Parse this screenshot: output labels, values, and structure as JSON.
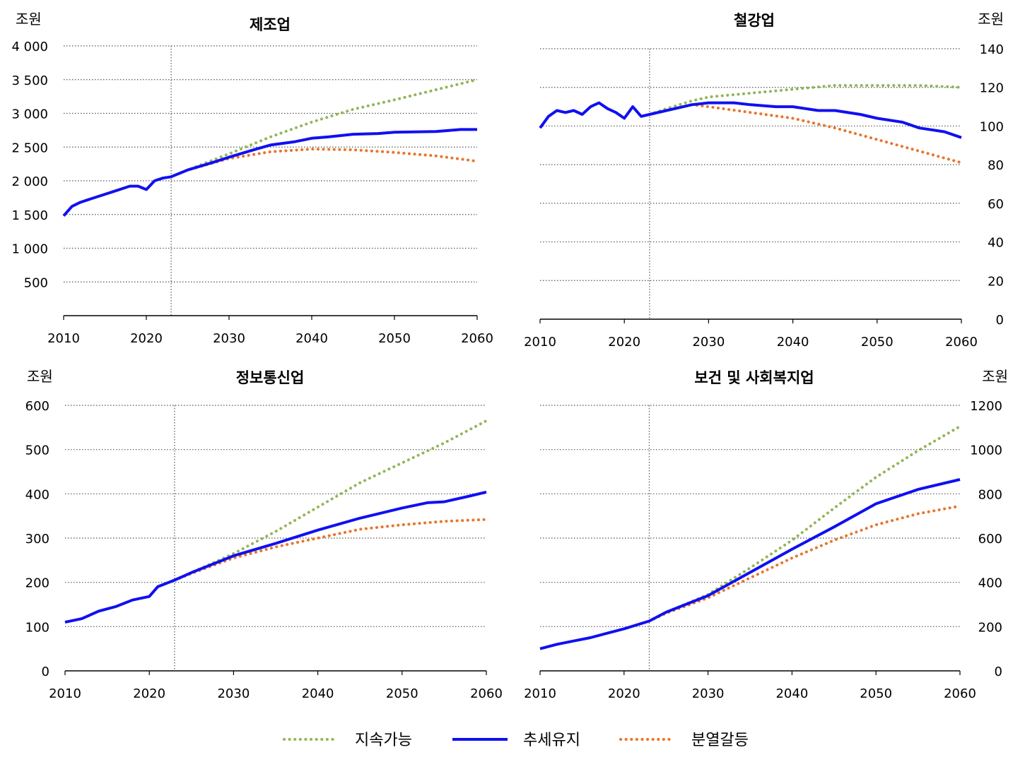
{
  "colors": {
    "sustainable": "#92b558",
    "trend": "#1010f0",
    "fragmented": "#e8742a",
    "grid": "#555555",
    "axis": "#000000"
  },
  "legend": [
    {
      "key": "sustainable",
      "label": "지속가능",
      "style": "dotted"
    },
    {
      "key": "trend",
      "label": "추세유지",
      "style": "solid"
    },
    {
      "key": "fragmented",
      "label": "분열갈등",
      "style": "dotted"
    }
  ],
  "chart_data": [
    {
      "type": "line",
      "title": "제조업",
      "unit": "조원",
      "axis_side": "left",
      "xlim": [
        2010,
        2060
      ],
      "xticks": [
        2010,
        2020,
        2030,
        2040,
        2050,
        2060
      ],
      "ylim": [
        0,
        4000
      ],
      "yticks": [
        500,
        1000,
        1500,
        2000,
        2500,
        3000,
        3500,
        4000
      ],
      "ytick_labels": [
        "500",
        "1 000",
        "1 500",
        "2 000",
        "2 500",
        "3 000",
        "3 500",
        "4 000"
      ],
      "vline": 2023,
      "series": [
        {
          "key": "trend",
          "name": "추세유지",
          "x": [
            2010,
            2011,
            2012,
            2013,
            2014,
            2015,
            2016,
            2017,
            2018,
            2019,
            2020,
            2021,
            2022,
            2023,
            2025,
            2028,
            2030,
            2033,
            2035,
            2038,
            2040,
            2042,
            2045,
            2048,
            2050,
            2055,
            2058,
            2060
          ],
          "y": [
            1480,
            1620,
            1680,
            1720,
            1760,
            1800,
            1840,
            1880,
            1920,
            1920,
            1870,
            2000,
            2040,
            2060,
            2160,
            2270,
            2350,
            2460,
            2530,
            2580,
            2630,
            2650,
            2690,
            2700,
            2720,
            2730,
            2760,
            2760
          ]
        },
        {
          "key": "sustainable",
          "name": "지속가능",
          "x": [
            2023,
            2025,
            2030,
            2035,
            2040,
            2045,
            2050,
            2055,
            2060
          ],
          "y": [
            2060,
            2160,
            2400,
            2650,
            2870,
            3060,
            3200,
            3350,
            3500
          ]
        },
        {
          "key": "fragmented",
          "name": "분열갈등",
          "x": [
            2023,
            2025,
            2030,
            2035,
            2040,
            2045,
            2050,
            2055,
            2060
          ],
          "y": [
            2060,
            2160,
            2330,
            2430,
            2470,
            2460,
            2420,
            2370,
            2290
          ]
        }
      ]
    },
    {
      "type": "line",
      "title": "철강업",
      "unit": "조원",
      "axis_side": "right",
      "xlim": [
        2010,
        2060
      ],
      "xticks": [
        2010,
        2020,
        2030,
        2040,
        2050,
        2060
      ],
      "ylim": [
        0,
        140
      ],
      "yticks": [
        0,
        20,
        40,
        60,
        80,
        100,
        120,
        140
      ],
      "ytick_labels": [
        "0",
        "20",
        "40",
        "60",
        "80",
        "100",
        "120",
        "140"
      ],
      "vline": 2023,
      "series": [
        {
          "key": "trend",
          "name": "추세유지",
          "x": [
            2010,
            2011,
            2012,
            2013,
            2014,
            2015,
            2016,
            2017,
            2018,
            2019,
            2020,
            2021,
            2022,
            2023,
            2025,
            2028,
            2030,
            2033,
            2035,
            2038,
            2040,
            2043,
            2045,
            2048,
            2050,
            2053,
            2055,
            2058,
            2060
          ],
          "y": [
            99,
            105,
            108,
            107,
            108,
            106,
            110,
            112,
            109,
            107,
            104,
            110,
            105,
            106,
            108,
            111,
            112,
            112,
            111,
            110,
            110,
            108,
            108,
            106,
            104,
            102,
            99,
            97,
            94
          ]
        },
        {
          "key": "sustainable",
          "name": "지속가능",
          "x": [
            2023,
            2025,
            2028,
            2030,
            2035,
            2040,
            2045,
            2050,
            2055,
            2060
          ],
          "y": [
            106,
            109,
            113,
            115,
            117,
            119,
            121,
            121,
            121,
            120
          ]
        },
        {
          "key": "fragmented",
          "name": "분열갈등",
          "x": [
            2023,
            2025,
            2028,
            2030,
            2035,
            2040,
            2045,
            2050,
            2055,
            2060
          ],
          "y": [
            106,
            108,
            111,
            110,
            107,
            104,
            99,
            93,
            87,
            81
          ]
        }
      ]
    },
    {
      "type": "line",
      "title": "정보통신업",
      "unit": "조원",
      "axis_side": "left",
      "xlim": [
        2010,
        2060
      ],
      "xticks": [
        2010,
        2020,
        2030,
        2040,
        2050,
        2060
      ],
      "ylim": [
        0,
        600
      ],
      "yticks": [
        0,
        100,
        200,
        300,
        400,
        500,
        600
      ],
      "ytick_labels": [
        "0",
        "100",
        "200",
        "300",
        "400",
        "500",
        "600"
      ],
      "vline": 2023,
      "series": [
        {
          "key": "trend",
          "name": "추세유지",
          "x": [
            2010,
            2012,
            2014,
            2016,
            2018,
            2020,
            2021,
            2023,
            2025,
            2030,
            2035,
            2040,
            2045,
            2050,
            2053,
            2055,
            2058,
            2060
          ],
          "y": [
            110,
            118,
            135,
            145,
            160,
            168,
            190,
            205,
            222,
            260,
            288,
            318,
            345,
            368,
            380,
            382,
            395,
            404
          ]
        },
        {
          "key": "sustainable",
          "name": "지속가능",
          "x": [
            2023,
            2025,
            2030,
            2035,
            2040,
            2045,
            2050,
            2055,
            2060
          ],
          "y": [
            205,
            222,
            265,
            315,
            370,
            425,
            470,
            515,
            565
          ]
        },
        {
          "key": "fragmented",
          "name": "분열갈등",
          "x": [
            2023,
            2025,
            2030,
            2035,
            2040,
            2045,
            2050,
            2055,
            2060
          ],
          "y": [
            205,
            220,
            255,
            280,
            300,
            320,
            330,
            338,
            342
          ]
        }
      ]
    },
    {
      "type": "line",
      "title": "보건 및 사회복지업",
      "unit": "조원",
      "axis_side": "right",
      "xlim": [
        2010,
        2060
      ],
      "xticks": [
        2010,
        2020,
        2030,
        2040,
        2050,
        2060
      ],
      "ylim": [
        0,
        1200
      ],
      "yticks": [
        0,
        200,
        400,
        600,
        800,
        1000,
        1200
      ],
      "ytick_labels": [
        "0",
        "200",
        "400",
        "600",
        "800",
        "1000",
        "1200"
      ],
      "vline": 2023,
      "series": [
        {
          "key": "trend",
          "name": "추세유지",
          "x": [
            2010,
            2012,
            2014,
            2016,
            2018,
            2020,
            2023,
            2025,
            2030,
            2035,
            2040,
            2045,
            2050,
            2055,
            2060
          ],
          "y": [
            100,
            120,
            135,
            150,
            170,
            190,
            225,
            265,
            340,
            445,
            550,
            650,
            755,
            820,
            865
          ]
        },
        {
          "key": "sustainable",
          "name": "지속가능",
          "x": [
            2023,
            2025,
            2030,
            2035,
            2040,
            2045,
            2050,
            2055,
            2060
          ],
          "y": [
            225,
            265,
            345,
            465,
            590,
            735,
            875,
            995,
            1105
          ]
        },
        {
          "key": "fragmented",
          "name": "분열갈등",
          "x": [
            2023,
            2025,
            2030,
            2035,
            2040,
            2045,
            2050,
            2055,
            2060
          ],
          "y": [
            225,
            260,
            330,
            420,
            510,
            590,
            660,
            710,
            745
          ]
        }
      ]
    }
  ]
}
